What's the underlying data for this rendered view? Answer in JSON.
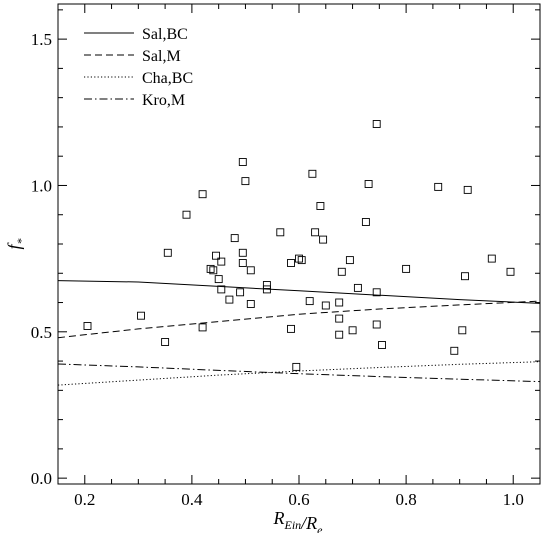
{
  "chart_data": {
    "type": "scatter",
    "title": "",
    "xlabel": "R_Ein/R_e",
    "ylabel": "f_*",
    "xlim": [
      0.15,
      1.05
    ],
    "ylim": [
      -0.02,
      1.62
    ],
    "xticks": [
      0.2,
      0.4,
      0.6,
      0.8,
      1.0
    ],
    "xtick_labels": [
      "0.2",
      "0.4",
      "0.6",
      "0.8",
      "1.0"
    ],
    "yticks": [
      0.0,
      0.5,
      1.0,
      1.5
    ],
    "ytick_labels": [
      "0.0",
      "0.5",
      "1.0",
      "1.5"
    ],
    "grid": false,
    "legend_position": "top-left",
    "scatter": {
      "marker": "open-square",
      "points": [
        {
          "x": 0.205,
          "y": 0.52
        },
        {
          "x": 0.305,
          "y": 0.555
        },
        {
          "x": 0.35,
          "y": 0.465
        },
        {
          "x": 0.355,
          "y": 0.77
        },
        {
          "x": 0.39,
          "y": 0.9
        },
        {
          "x": 0.42,
          "y": 0.97
        },
        {
          "x": 0.42,
          "y": 0.515
        },
        {
          "x": 0.435,
          "y": 0.715
        },
        {
          "x": 0.44,
          "y": 0.71
        },
        {
          "x": 0.445,
          "y": 0.76
        },
        {
          "x": 0.45,
          "y": 0.68
        },
        {
          "x": 0.455,
          "y": 0.74
        },
        {
          "x": 0.455,
          "y": 0.645
        },
        {
          "x": 0.47,
          "y": 0.61
        },
        {
          "x": 0.48,
          "y": 0.82
        },
        {
          "x": 0.49,
          "y": 0.635
        },
        {
          "x": 0.495,
          "y": 1.08
        },
        {
          "x": 0.495,
          "y": 0.77
        },
        {
          "x": 0.495,
          "y": 0.735
        },
        {
          "x": 0.5,
          "y": 1.015
        },
        {
          "x": 0.51,
          "y": 0.71
        },
        {
          "x": 0.51,
          "y": 0.595
        },
        {
          "x": 0.54,
          "y": 0.66
        },
        {
          "x": 0.54,
          "y": 0.645
        },
        {
          "x": 0.565,
          "y": 0.84
        },
        {
          "x": 0.585,
          "y": 0.735
        },
        {
          "x": 0.585,
          "y": 0.51
        },
        {
          "x": 0.595,
          "y": 0.38
        },
        {
          "x": 0.6,
          "y": 0.75
        },
        {
          "x": 0.605,
          "y": 0.745
        },
        {
          "x": 0.62,
          "y": 0.605
        },
        {
          "x": 0.625,
          "y": 1.04
        },
        {
          "x": 0.63,
          "y": 0.84
        },
        {
          "x": 0.64,
          "y": 0.93
        },
        {
          "x": 0.645,
          "y": 0.815
        },
        {
          "x": 0.65,
          "y": 0.59
        },
        {
          "x": 0.675,
          "y": 0.6
        },
        {
          "x": 0.675,
          "y": 0.545
        },
        {
          "x": 0.675,
          "y": 0.49
        },
        {
          "x": 0.68,
          "y": 0.705
        },
        {
          "x": 0.695,
          "y": 0.745
        },
        {
          "x": 0.7,
          "y": 0.505
        },
        {
          "x": 0.71,
          "y": 0.65
        },
        {
          "x": 0.725,
          "y": 0.875
        },
        {
          "x": 0.73,
          "y": 1.005
        },
        {
          "x": 0.745,
          "y": 1.21
        },
        {
          "x": 0.745,
          "y": 0.635
        },
        {
          "x": 0.745,
          "y": 0.525
        },
        {
          "x": 0.755,
          "y": 0.455
        },
        {
          "x": 0.8,
          "y": 0.715
        },
        {
          "x": 0.86,
          "y": 0.995
        },
        {
          "x": 0.89,
          "y": 0.435
        },
        {
          "x": 0.905,
          "y": 0.505
        },
        {
          "x": 0.91,
          "y": 0.69
        },
        {
          "x": 0.915,
          "y": 0.985
        },
        {
          "x": 0.96,
          "y": 0.75
        },
        {
          "x": 0.995,
          "y": 0.705
        }
      ]
    },
    "series": [
      {
        "name": "Sal,BC",
        "line_style": "solid",
        "x": [
          0.15,
          0.3,
          0.45,
          0.6,
          0.75,
          0.9,
          1.05
        ],
        "y": [
          0.675,
          0.67,
          0.655,
          0.64,
          0.625,
          0.61,
          0.597
        ]
      },
      {
        "name": "Sal,M",
        "line_style": "dashed",
        "x": [
          0.15,
          0.3,
          0.45,
          0.6,
          0.75,
          0.9,
          1.05
        ],
        "y": [
          0.48,
          0.51,
          0.535,
          0.56,
          0.578,
          0.592,
          0.605
        ]
      },
      {
        "name": "Cha,BC",
        "line_style": "dotted",
        "x": [
          0.15,
          0.3,
          0.45,
          0.6,
          0.75,
          0.9,
          1.05
        ],
        "y": [
          0.318,
          0.335,
          0.352,
          0.366,
          0.378,
          0.389,
          0.398
        ]
      },
      {
        "name": "Kro,M",
        "line_style": "dash-dot",
        "x": [
          0.15,
          0.3,
          0.45,
          0.6,
          0.75,
          0.9,
          1.05
        ],
        "y": [
          0.39,
          0.38,
          0.368,
          0.357,
          0.347,
          0.338,
          0.33
        ]
      }
    ]
  }
}
